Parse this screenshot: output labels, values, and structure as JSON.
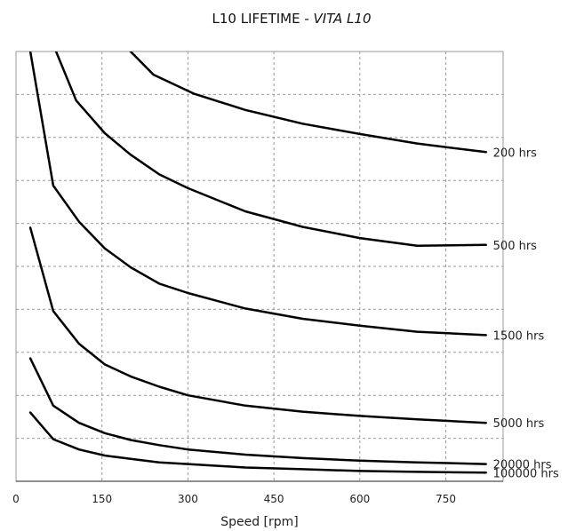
{
  "chart_data": {
    "type": "line",
    "title": "L10 LIFETIME - ",
    "title_model": "VITA L10",
    "xlabel": "Speed [rpm]",
    "ylabel": "",
    "xlim": [
      0,
      850
    ],
    "ylim": [
      0,
      500
    ],
    "xticks": [
      0,
      150,
      300,
      450,
      600,
      750
    ],
    "xtick_labels": [
      "0",
      "150",
      "300",
      "450",
      "600",
      "750"
    ],
    "grid": true,
    "series": [
      {
        "name": "200 hrs",
        "x": [
          200,
          240,
          310,
          400,
          500,
          600,
          700,
          820
        ],
        "y": [
          500,
          473,
          451,
          432,
          416,
          404,
          393,
          383
        ]
      },
      {
        "name": "500 hrs",
        "x": [
          70,
          105,
          155,
          200,
          250,
          300,
          400,
          500,
          600,
          700,
          820
        ],
        "y": [
          500,
          443,
          405,
          380,
          357,
          341,
          314,
          296,
          283,
          274,
          275
        ]
      },
      {
        "name": "1500 hrs",
        "x": [
          25,
          65,
          110,
          155,
          200,
          250,
          300,
          400,
          500,
          600,
          700,
          820
        ],
        "y": [
          500,
          344,
          302,
          271,
          249,
          230,
          219,
          201,
          189,
          181,
          174,
          170
        ]
      },
      {
        "name": "5000 hrs",
        "x": [
          25,
          65,
          110,
          155,
          200,
          250,
          300,
          400,
          500,
          600,
          700,
          820
        ],
        "y": [
          295,
          198,
          160,
          136,
          122,
          110,
          100,
          88,
          81,
          76,
          72,
          68
        ]
      },
      {
        "name": "20000 hrs",
        "x": [
          25,
          65,
          110,
          155,
          200,
          250,
          300,
          400,
          500,
          600,
          700,
          820
        ],
        "y": [
          143,
          88,
          68,
          56,
          48,
          42,
          37,
          31,
          27,
          24,
          22,
          20
        ]
      },
      {
        "name": "100000 hrs",
        "x": [
          25,
          65,
          110,
          155,
          200,
          250,
          300,
          400,
          500,
          600,
          700,
          820
        ],
        "y": [
          80,
          49,
          37,
          30,
          26,
          22,
          20,
          16,
          14,
          12,
          11,
          10
        ]
      }
    ]
  }
}
